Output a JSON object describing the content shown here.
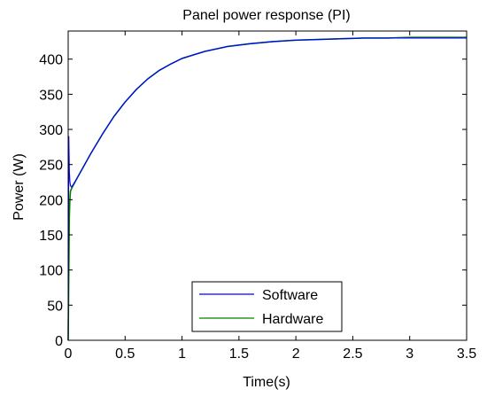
{
  "chart_data": {
    "type": "line",
    "title": "Panel power response (PI)",
    "xlabel": "Time(s)",
    "ylabel": "Power (W)",
    "xlim": [
      0,
      3.5
    ],
    "ylim": [
      0,
      440
    ],
    "xticks": [
      0,
      0.5,
      1,
      1.5,
      2,
      2.5,
      3,
      3.5
    ],
    "xtick_labels": [
      "0",
      "0.5",
      "1",
      "1.5",
      "2",
      "2.5",
      "3",
      "3.5"
    ],
    "yticks": [
      0,
      50,
      100,
      150,
      200,
      250,
      300,
      350,
      400
    ],
    "ytick_labels": [
      "0",
      "50",
      "100",
      "150",
      "200",
      "250",
      "300",
      "350",
      "400"
    ],
    "grid": false,
    "legend_position": "bottom-center",
    "series": [
      {
        "name": "Software",
        "color": "#0000ff",
        "x": [
          0,
          0.005,
          0.01,
          0.015,
          0.02,
          0.03,
          0.05,
          0.1,
          0.2,
          0.3,
          0.4,
          0.5,
          0.6,
          0.7,
          0.8,
          0.9,
          1.0,
          1.2,
          1.4,
          1.6,
          1.8,
          2.0,
          2.2,
          2.4,
          2.6,
          2.8,
          3.0,
          3.2,
          3.5
        ],
        "y": [
          0,
          290,
          240,
          225,
          220,
          218,
          223,
          237,
          266,
          293,
          318,
          339,
          357,
          372,
          384,
          393,
          401,
          411,
          418,
          422,
          425,
          427,
          428,
          429,
          430,
          430,
          430,
          430,
          430
        ]
      },
      {
        "name": "Hardware",
        "color": "#008000",
        "x": [
          0,
          0.01,
          0.015,
          0.02,
          0.03,
          0.05,
          0.1,
          0.2,
          0.3,
          0.4,
          0.5,
          0.6,
          0.7,
          0.8,
          0.9,
          1.0,
          1.2,
          1.4,
          1.6,
          1.8,
          2.0,
          2.2,
          2.4,
          2.6,
          2.8,
          3.0,
          3.2,
          3.5
        ],
        "y": [
          0,
          175,
          200,
          212,
          216,
          222,
          237,
          266,
          293,
          318,
          339,
          357,
          372,
          384,
          393,
          401,
          411,
          418,
          422,
          425,
          427,
          428,
          429,
          430,
          430,
          431,
          431,
          431
        ]
      }
    ]
  }
}
